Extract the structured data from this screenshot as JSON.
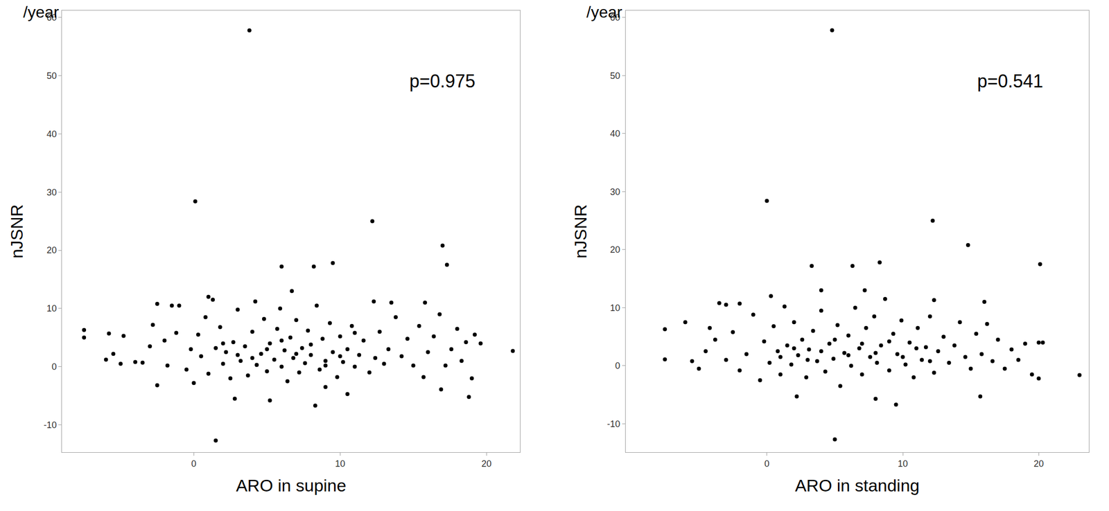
{
  "chart_data": [
    {
      "type": "scatter",
      "xlabel": "ARO in supine",
      "ylabel": "nJSNR",
      "y_unit": "/year",
      "annotation": "p=0.975",
      "color": "#000000",
      "marker": "circle",
      "grid": false,
      "xlim": [
        -9,
        22.3
      ],
      "ylim": [
        -14.7,
        61.2
      ],
      "xticks": [
        0,
        10,
        20
      ],
      "yticks": [
        -10,
        0,
        10,
        20,
        30,
        40,
        50,
        60
      ],
      "x": [
        3.8,
        0.1,
        12.2,
        17.0,
        17.3,
        6.0,
        8.2,
        9.5,
        6.7,
        1.5,
        8.3,
        5.2,
        2.8,
        -2.5,
        16.9,
        18.8,
        21.8,
        19.6,
        -7.5,
        -7.5,
        -5.8,
        -6.0,
        -4.8,
        -2.5,
        -1.5,
        -1.0,
        1.0,
        1.3,
        12.3,
        13.5,
        15.8,
        16.8,
        10.5,
        9.0,
        19.0,
        -5.5,
        -5.0,
        -4.0,
        -3.5,
        -3.0,
        -2.8,
        -2.0,
        -1.8,
        -1.2,
        -0.5,
        -0.2,
        0.0,
        0.3,
        0.5,
        0.8,
        1.0,
        1.5,
        1.8,
        2.0,
        2.2,
        2.5,
        2.7,
        3.0,
        3.2,
        3.5,
        3.7,
        4.0,
        4.2,
        4.3,
        4.6,
        4.8,
        5.0,
        5.2,
        5.5,
        5.7,
        5.9,
        6.0,
        6.2,
        6.4,
        6.6,
        6.8,
        7.0,
        7.2,
        7.4,
        7.6,
        7.8,
        8.0,
        8.4,
        8.6,
        8.8,
        9.0,
        9.3,
        9.5,
        9.8,
        10.0,
        10.2,
        10.5,
        10.8,
        11.0,
        11.3,
        11.6,
        12.0,
        12.4,
        12.7,
        13.0,
        13.3,
        13.8,
        14.2,
        14.6,
        15.0,
        15.4,
        15.7,
        16.0,
        16.4,
        17.2,
        17.6,
        18.0,
        18.3,
        18.6,
        19.2,
        2.0,
        3.0,
        4.0,
        5.0,
        6.0,
        7.0,
        8.0,
        9.0,
        10.0,
        11.0
      ],
      "values": [
        57.8,
        28.4,
        25.0,
        20.8,
        17.5,
        17.2,
        17.2,
        17.8,
        13.0,
        -12.7,
        -6.7,
        -5.8,
        -5.5,
        -3.2,
        -3.9,
        -5.2,
        2.7,
        4.0,
        6.3,
        5.0,
        5.7,
        1.2,
        5.3,
        10.8,
        10.5,
        10.5,
        12.0,
        11.5,
        11.2,
        11.0,
        11.0,
        9.0,
        -4.7,
        -3.5,
        -2.0,
        2.2,
        0.5,
        0.8,
        0.7,
        3.5,
        7.2,
        4.5,
        0.2,
        5.8,
        -0.5,
        3.0,
        -2.8,
        5.5,
        1.8,
        8.5,
        -1.2,
        3.2,
        6.8,
        0.5,
        2.5,
        -2.0,
        4.2,
        9.8,
        1.0,
        3.5,
        -1.5,
        6.0,
        11.2,
        0.3,
        2.2,
        8.2,
        -0.8,
        4.0,
        1.2,
        6.5,
        10.0,
        0.0,
        2.8,
        -2.5,
        5.0,
        1.5,
        8.0,
        -1.0,
        3.2,
        0.6,
        6.2,
        2.0,
        10.5,
        -0.5,
        4.8,
        1.0,
        7.5,
        2.5,
        -1.8,
        5.2,
        0.8,
        3.0,
        7.0,
        0.0,
        2.0,
        4.5,
        -1.0,
        1.5,
        6.0,
        0.5,
        3.0,
        8.5,
        1.8,
        4.8,
        0.2,
        7.0,
        -1.8,
        2.5,
        5.2,
        0.2,
        3.0,
        6.5,
        1.0,
        4.2,
        5.5,
        4.0,
        2.0,
        1.5,
        3.0,
        4.5,
        2.2,
        3.8,
        0.2,
        1.8,
        5.8
      ]
    },
    {
      "type": "scatter",
      "xlabel": "ARO in standing",
      "ylabel": "nJSNR",
      "y_unit": "/year",
      "annotation": "p=0.541",
      "color": "#000000",
      "marker": "circle",
      "grid": false,
      "xlim": [
        -10.4,
        23.7
      ],
      "ylim": [
        -14.9,
        61.2
      ],
      "xticks": [
        0,
        10,
        20
      ],
      "yticks": [
        -10,
        0,
        10,
        20,
        30,
        40,
        50,
        60
      ],
      "x": [
        4.8,
        0.0,
        12.2,
        14.8,
        20.1,
        3.3,
        6.3,
        8.3,
        4.0,
        7.2,
        5.0,
        9.5,
        8.0,
        2.2,
        15.7,
        20.0,
        23.0,
        -7.5,
        -7.5,
        -6.0,
        -3.5,
        -3.0,
        -2.0,
        0.3,
        12.3,
        16.0,
        20.0,
        20.3,
        19.0,
        -5.5,
        -5.0,
        -4.5,
        -4.2,
        -3.8,
        -3.0,
        -2.5,
        -2.0,
        -1.5,
        -1.0,
        -0.5,
        -0.2,
        0.2,
        0.5,
        0.8,
        1.0,
        1.3,
        1.5,
        1.8,
        2.0,
        2.3,
        2.6,
        2.9,
        3.1,
        3.4,
        3.7,
        4.0,
        4.3,
        4.6,
        4.9,
        5.2,
        5.4,
        5.7,
        6.0,
        6.2,
        6.5,
        6.8,
        7.0,
        7.3,
        7.6,
        7.9,
        8.1,
        8.4,
        8.7,
        9.0,
        9.3,
        9.6,
        9.9,
        10.2,
        10.5,
        10.8,
        11.1,
        11.4,
        11.7,
        12.0,
        12.3,
        12.6,
        13.0,
        13.4,
        13.8,
        14.2,
        14.6,
        15.0,
        15.4,
        15.8,
        16.2,
        16.6,
        17.0,
        17.5,
        18.0,
        18.5,
        19.5,
        1.0,
        2.0,
        3.0,
        4.0,
        5.0,
        6.0,
        7.0,
        8.0,
        9.0,
        10.0,
        11.0,
        12.0
      ],
      "values": [
        57.8,
        28.4,
        25.0,
        20.8,
        17.5,
        17.2,
        17.2,
        17.8,
        13.0,
        13.0,
        -12.7,
        -6.7,
        -5.7,
        -5.3,
        -5.3,
        -2.2,
        -1.6,
        6.3,
        1.1,
        7.5,
        10.8,
        10.5,
        10.7,
        12.0,
        11.3,
        11.0,
        4.0,
        4.0,
        3.8,
        0.8,
        -0.5,
        2.5,
        6.5,
        4.5,
        1.0,
        5.8,
        -0.8,
        2.0,
        8.8,
        -2.5,
        4.2,
        0.5,
        6.8,
        2.5,
        -1.5,
        10.2,
        3.5,
        0.2,
        7.5,
        1.8,
        4.5,
        -2.0,
        2.8,
        6.0,
        0.8,
        9.5,
        -1.0,
        3.8,
        1.2,
        7.0,
        -3.5,
        2.2,
        5.2,
        0.0,
        10.0,
        3.0,
        -1.5,
        6.5,
        1.5,
        8.5,
        0.5,
        3.5,
        11.5,
        -0.8,
        5.5,
        2.0,
        7.8,
        0.2,
        4.0,
        -2.0,
        6.5,
        1.0,
        3.2,
        8.5,
        -1.2,
        2.5,
        5.0,
        0.5,
        3.5,
        7.5,
        1.5,
        -0.5,
        5.5,
        2.0,
        7.2,
        0.8,
        4.5,
        -0.5,
        2.8,
        1.0,
        -1.5,
        1.5,
        3.0,
        1.0,
        2.5,
        4.5,
        1.8,
        3.8,
        2.2,
        4.2,
        1.5,
        3.0,
        0.8
      ]
    }
  ]
}
